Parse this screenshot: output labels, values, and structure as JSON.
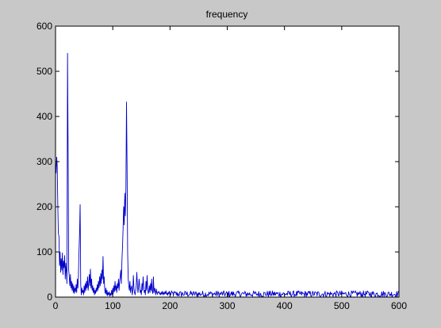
{
  "figure": {
    "background": "#c8c8c8",
    "axes_background": "#ffffff",
    "line_color": "#0000cc"
  },
  "chart_data": {
    "type": "line",
    "title": "frequency",
    "xlabel": "",
    "ylabel": "",
    "xlim": [
      0,
      600
    ],
    "ylim": [
      0,
      600
    ],
    "xticks": [
      0,
      100,
      200,
      300,
      400,
      500,
      600
    ],
    "yticks": [
      0,
      100,
      200,
      300,
      400,
      500,
      600
    ],
    "grid": false,
    "series": [
      {
        "values": [
          [
            0,
            300
          ],
          [
            1,
            275
          ],
          [
            2,
            310
          ],
          [
            3,
            290
          ],
          [
            4,
            200
          ],
          [
            5,
            140
          ],
          [
            6,
            135
          ],
          [
            7,
            70
          ],
          [
            8,
            100
          ],
          [
            9,
            55
          ],
          [
            10,
            85
          ],
          [
            11,
            60
          ],
          [
            12,
            98
          ],
          [
            13,
            50
          ],
          [
            14,
            80
          ],
          [
            15,
            65
          ],
          [
            16,
            92
          ],
          [
            17,
            40
          ],
          [
            18,
            75
          ],
          [
            19,
            55
          ],
          [
            20,
            30
          ],
          [
            21,
            540
          ],
          [
            22,
            320
          ],
          [
            23,
            60
          ],
          [
            24,
            45
          ],
          [
            25,
            25
          ],
          [
            26,
            50
          ],
          [
            27,
            20
          ],
          [
            28,
            35
          ],
          [
            29,
            15
          ],
          [
            30,
            30
          ],
          [
            31,
            10
          ],
          [
            32,
            25
          ],
          [
            33,
            8
          ],
          [
            34,
            20
          ],
          [
            35,
            12
          ],
          [
            36,
            28
          ],
          [
            37,
            10
          ],
          [
            38,
            40
          ],
          [
            39,
            20
          ],
          [
            40,
            45
          ],
          [
            41,
            100
          ],
          [
            42,
            140
          ],
          [
            43,
            205
          ],
          [
            44,
            30
          ],
          [
            45,
            5
          ],
          [
            46,
            20
          ],
          [
            47,
            10
          ],
          [
            48,
            15
          ],
          [
            49,
            5
          ],
          [
            50,
            25
          ],
          [
            51,
            10
          ],
          [
            52,
            30
          ],
          [
            53,
            15
          ],
          [
            54,
            35
          ],
          [
            55,
            20
          ],
          [
            56,
            45
          ],
          [
            57,
            15
          ],
          [
            58,
            30
          ],
          [
            59,
            50
          ],
          [
            60,
            25
          ],
          [
            61,
            62
          ],
          [
            62,
            20
          ],
          [
            63,
            40
          ],
          [
            64,
            15
          ],
          [
            65,
            25
          ],
          [
            66,
            10
          ],
          [
            67,
            20
          ],
          [
            68,
            5
          ],
          [
            69,
            15
          ],
          [
            70,
            8
          ],
          [
            71,
            20
          ],
          [
            72,
            12
          ],
          [
            73,
            28
          ],
          [
            74,
            15
          ],
          [
            75,
            35
          ],
          [
            76,
            20
          ],
          [
            77,
            45
          ],
          [
            78,
            25
          ],
          [
            79,
            52
          ],
          [
            80,
            30
          ],
          [
            81,
            60
          ],
          [
            82,
            40
          ],
          [
            83,
            90
          ],
          [
            84,
            30
          ],
          [
            85,
            45
          ],
          [
            86,
            15
          ],
          [
            87,
            8
          ],
          [
            88,
            20
          ],
          [
            89,
            5
          ],
          [
            90,
            15
          ],
          [
            91,
            3
          ],
          [
            92,
            10
          ],
          [
            93,
            5
          ],
          [
            94,
            12
          ],
          [
            95,
            2
          ],
          [
            96,
            8
          ],
          [
            97,
            4
          ],
          [
            98,
            15
          ],
          [
            99,
            5
          ],
          [
            100,
            20
          ],
          [
            101,
            8
          ],
          [
            102,
            25
          ],
          [
            103,
            12
          ],
          [
            104,
            35
          ],
          [
            105,
            15
          ],
          [
            106,
            25
          ],
          [
            107,
            10
          ],
          [
            108,
            30
          ],
          [
            109,
            20
          ],
          [
            110,
            40
          ],
          [
            111,
            15
          ],
          [
            112,
            35
          ],
          [
            113,
            45
          ],
          [
            114,
            60
          ],
          [
            115,
            30
          ],
          [
            116,
            80
          ],
          [
            117,
            110
          ],
          [
            118,
            150
          ],
          [
            119,
            200
          ],
          [
            120,
            160
          ],
          [
            121,
            230
          ],
          [
            122,
            180
          ],
          [
            123,
            240
          ],
          [
            124,
            432
          ],
          [
            125,
            290
          ],
          [
            126,
            100
          ],
          [
            127,
            40
          ],
          [
            128,
            25
          ],
          [
            129,
            15
          ],
          [
            130,
            35
          ],
          [
            131,
            10
          ],
          [
            132,
            20
          ],
          [
            133,
            25
          ],
          [
            134,
            5
          ],
          [
            135,
            15
          ],
          [
            136,
            48
          ],
          [
            137,
            20
          ],
          [
            138,
            10
          ],
          [
            139,
            5
          ],
          [
            140,
            15
          ],
          [
            141,
            25
          ],
          [
            142,
            55
          ],
          [
            143,
            30
          ],
          [
            144,
            10
          ],
          [
            145,
            20
          ],
          [
            146,
            40
          ],
          [
            147,
            25
          ],
          [
            148,
            10
          ],
          [
            149,
            15
          ],
          [
            150,
            5
          ],
          [
            151,
            30
          ],
          [
            152,
            15
          ],
          [
            153,
            45
          ],
          [
            154,
            25
          ],
          [
            155,
            10
          ],
          [
            156,
            15
          ],
          [
            157,
            5
          ],
          [
            158,
            35
          ],
          [
            159,
            15
          ],
          [
            160,
            48
          ],
          [
            161,
            20
          ],
          [
            162,
            8
          ],
          [
            163,
            12
          ],
          [
            164,
            25
          ],
          [
            165,
            10
          ],
          [
            166,
            30
          ],
          [
            167,
            15
          ],
          [
            168,
            40
          ],
          [
            169,
            12
          ],
          [
            170,
            8
          ],
          [
            171,
            45
          ],
          [
            172,
            10
          ],
          [
            173,
            20
          ],
          [
            174,
            15
          ],
          [
            175,
            5
          ],
          [
            176,
            18
          ],
          [
            177,
            10
          ],
          [
            178,
            6
          ],
          [
            179,
            12
          ],
          [
            180,
            10
          ],
          [
            181,
            12
          ],
          [
            182,
            6
          ],
          [
            183,
            9
          ],
          [
            184,
            5
          ],
          [
            185,
            11
          ],
          [
            186,
            7
          ],
          [
            187,
            13
          ],
          [
            188,
            5
          ],
          [
            189,
            10
          ],
          [
            190,
            6
          ],
          [
            191,
            12
          ],
          [
            192,
            8
          ],
          [
            193,
            14
          ],
          [
            194,
            6
          ],
          [
            195,
            9
          ],
          [
            196,
            4
          ],
          [
            197,
            11
          ],
          [
            198,
            7
          ],
          [
            199,
            13
          ]
        ],
        "baseline_min": 0,
        "baseline_max": 14,
        "baseline_from": 200,
        "baseline_to": 600
      }
    ]
  }
}
